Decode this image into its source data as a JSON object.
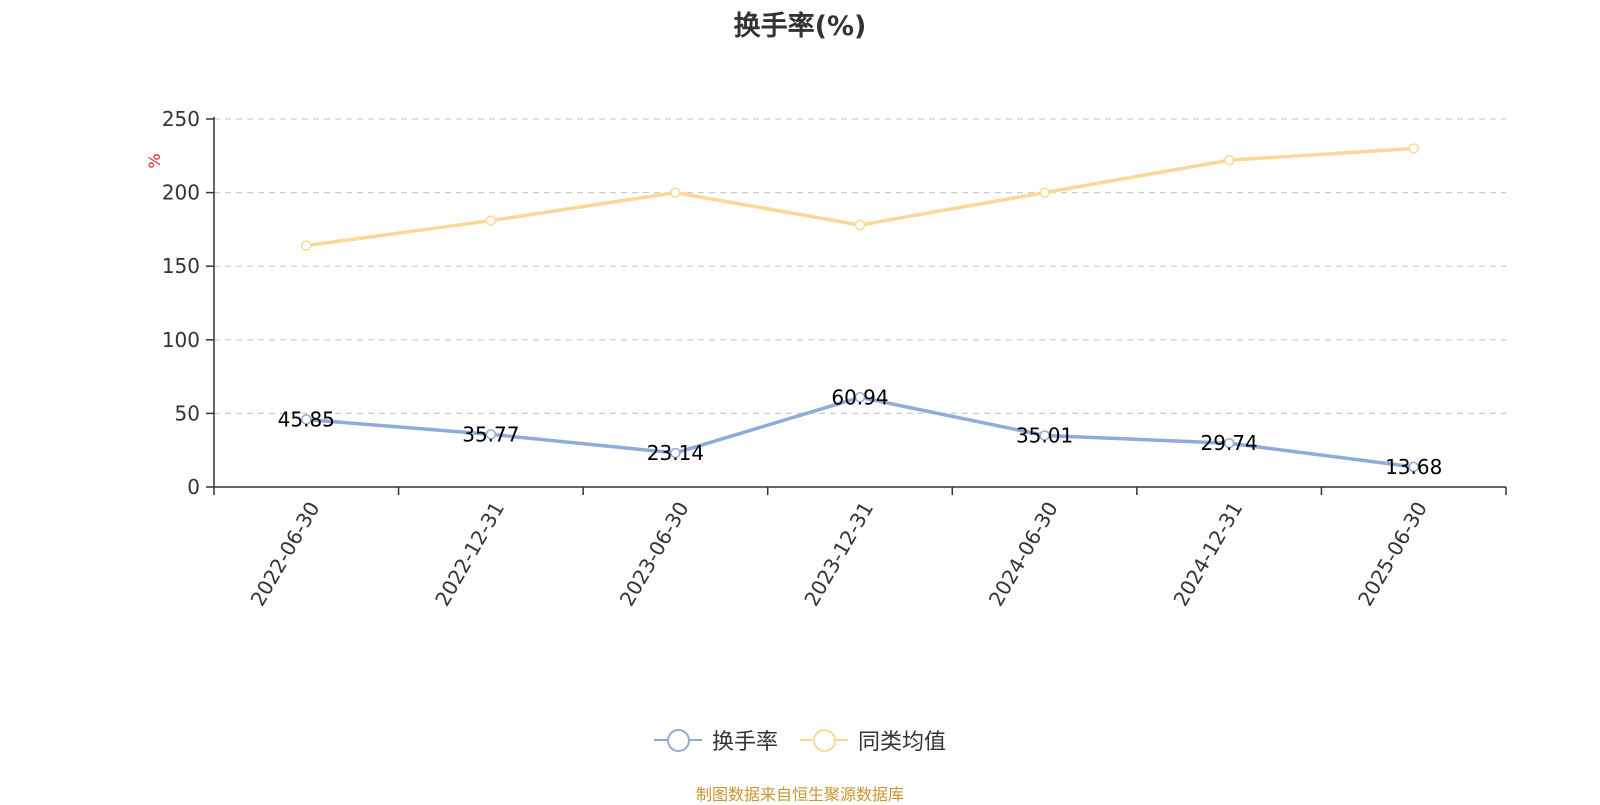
{
  "title": "换手率(%)",
  "source_note": "制图数据来自恒生聚源数据库",
  "colors": {
    "series_1": "#8eabd9",
    "series_2": "#fbd798",
    "source": "#c8962c",
    "unit_label": "#e02020",
    "axis": "#333333",
    "grid": "#cccccc"
  },
  "legend": {
    "item_1": "换手率",
    "item_2": "同类均值"
  },
  "chart_data": {
    "type": "line",
    "title": "换手率(%)",
    "ylabel": "%",
    "xlabel": "",
    "categories": [
      "2022-06-30",
      "2022-12-31",
      "2023-06-30",
      "2023-12-31",
      "2024-06-30",
      "2024-12-31",
      "2025-06-30"
    ],
    "ylim": [
      0,
      250
    ],
    "yticks": [
      0,
      50,
      100,
      150,
      200,
      250
    ],
    "grid": true,
    "legend_position": "bottom",
    "series": [
      {
        "name": "换手率",
        "values": [
          45.85,
          35.77,
          23.14,
          60.94,
          35.01,
          29.74,
          13.68
        ],
        "labels": [
          "45.85",
          "35.77",
          "23.14",
          "60.94",
          "35.01",
          "29.74",
          "13.68"
        ]
      },
      {
        "name": "同类均值",
        "values": [
          164,
          181,
          200,
          178,
          200,
          222,
          230
        ]
      }
    ]
  }
}
